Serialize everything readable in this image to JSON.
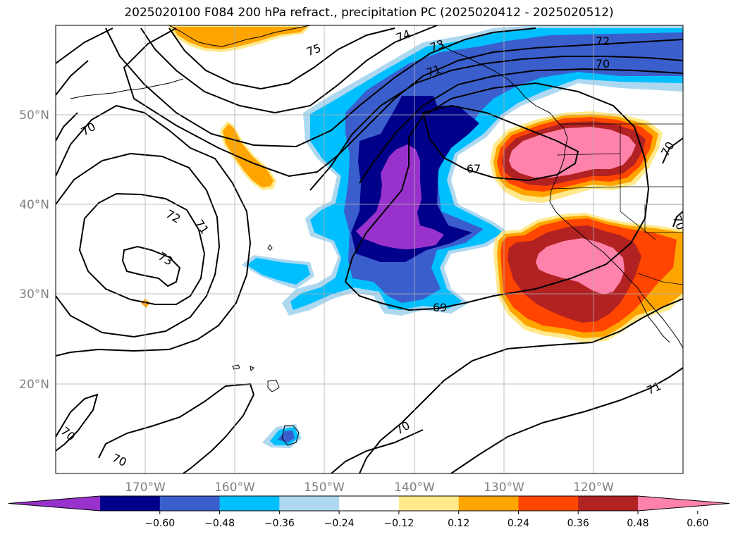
{
  "title": "2025020100 F084 200 hPa refract., precipitation PC (2025020412 - 2025020512)",
  "map": {
    "lat_labels": [
      "50°N",
      "40°N",
      "30°N",
      "20°N"
    ],
    "lon_labels": [
      "170°W",
      "160°W",
      "150°W",
      "140°W",
      "130°W",
      "120°W"
    ],
    "contour_labels": [
      "70",
      "72",
      "71",
      "73",
      "74",
      "75",
      "73",
      "71",
      "72",
      "70",
      "67",
      "69",
      "70",
      "70",
      "71",
      "70",
      "70",
      "70"
    ]
  },
  "colorbar": {
    "ticks": [
      "−0.60",
      "−0.48",
      "−0.36",
      "−0.24",
      "−0.12",
      "0.12",
      "0.24",
      "0.36",
      "0.48",
      "0.60"
    ],
    "colors": [
      "#9932CC",
      "#00008B",
      "#3A5FCD",
      "#00BFFF",
      "#ADD8F0",
      "#FFFFFF",
      "#FFE98A",
      "#FFA500",
      "#FF4500",
      "#B22222",
      "#FF82AB"
    ]
  }
}
